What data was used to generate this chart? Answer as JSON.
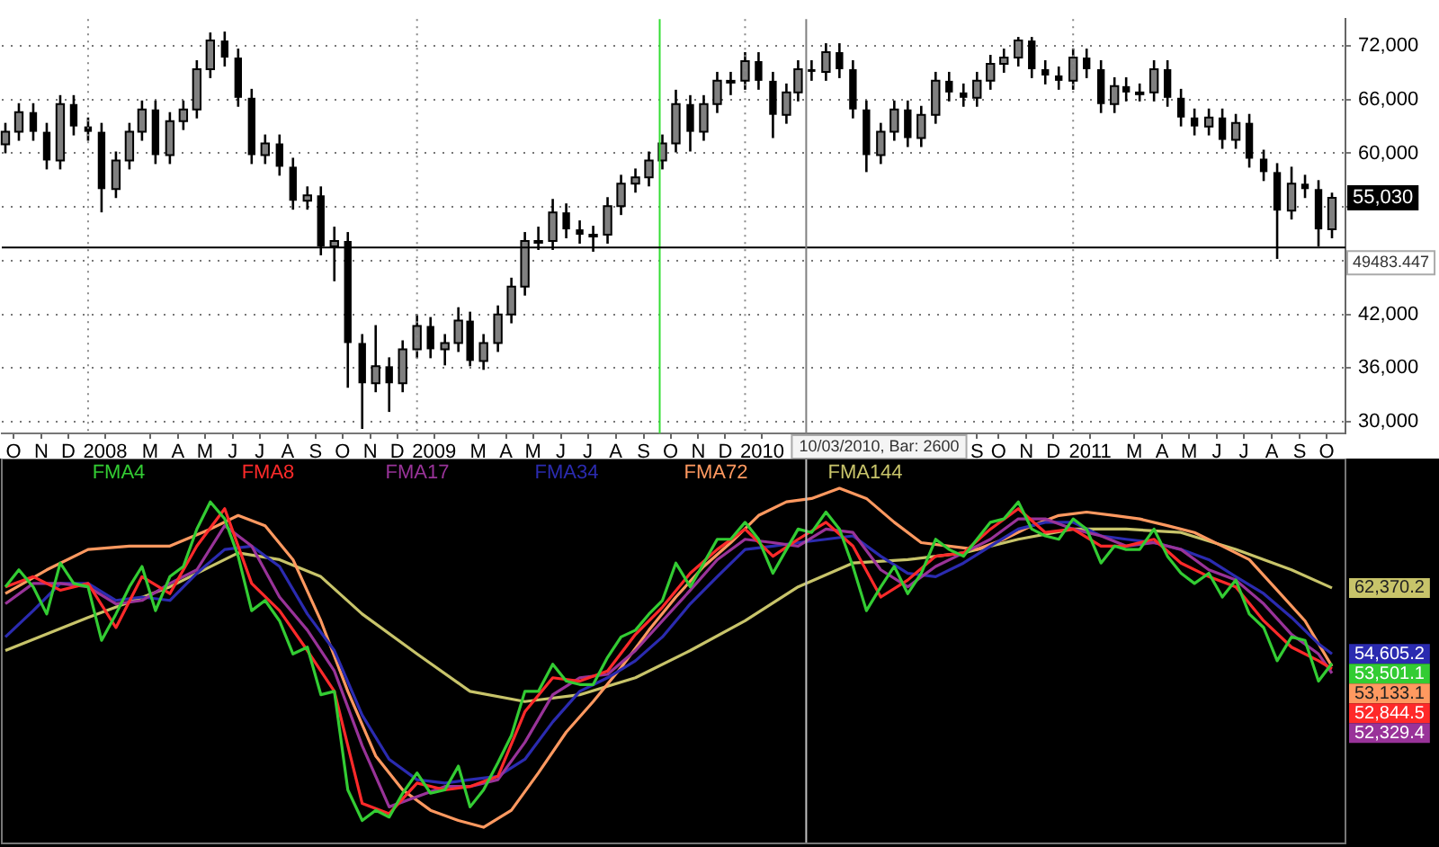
{
  "chart_data": [
    {
      "type": "candlestick",
      "x": [
        "2007-10-01",
        "2007-10-16",
        "2007-11-01",
        "2007-11-16",
        "2007-12-01",
        "2007-12-16",
        "2008-01-01",
        "2008-01-16",
        "2008-02-01",
        "2008-02-16",
        "2008-03-01",
        "2008-03-16",
        "2008-04-01",
        "2008-04-16",
        "2008-05-01",
        "2008-05-16",
        "2008-06-01",
        "2008-06-16",
        "2008-07-01",
        "2008-07-16",
        "2008-08-01",
        "2008-08-16",
        "2008-09-01",
        "2008-09-16",
        "2008-10-01",
        "2008-10-16",
        "2008-11-01",
        "2008-11-16",
        "2008-12-01",
        "2008-12-16",
        "2009-01-01",
        "2009-01-16",
        "2009-02-01",
        "2009-02-16",
        "2009-03-01",
        "2009-03-16",
        "2009-04-01",
        "2009-04-16",
        "2009-05-01",
        "2009-05-16",
        "2009-06-01",
        "2009-06-16",
        "2009-07-01",
        "2009-07-16",
        "2009-08-01",
        "2009-08-16",
        "2009-09-01",
        "2009-09-16",
        "2009-10-01",
        "2009-10-16",
        "2009-11-01",
        "2009-11-16",
        "2009-12-01",
        "2009-12-16",
        "2010-01-01",
        "2010-01-16",
        "2010-02-01",
        "2010-02-16",
        "2010-03-01",
        "2010-03-16",
        "2010-04-01",
        "2010-04-16",
        "2010-05-01",
        "2010-05-16",
        "2010-06-01",
        "2010-06-16",
        "2010-07-01",
        "2010-07-16",
        "2010-08-01",
        "2010-08-16",
        "2010-09-01",
        "2010-09-16",
        "2010-10-01",
        "2010-10-16",
        "2010-11-01",
        "2010-11-16",
        "2010-12-01",
        "2010-12-16",
        "2011-01-01",
        "2011-01-16",
        "2011-02-01",
        "2011-02-16",
        "2011-03-01",
        "2011-03-16",
        "2011-04-01",
        "2011-04-16",
        "2011-05-01",
        "2011-05-16",
        "2011-06-01",
        "2011-06-16",
        "2011-07-01",
        "2011-07-16",
        "2011-08-01",
        "2011-08-16",
        "2011-09-01",
        "2011-09-16",
        "2011-10-01",
        "2011-10-16"
      ],
      "ohlc": [
        [
          61000,
          63400,
          60000,
          62400
        ],
        [
          62400,
          65600,
          61400,
          64600
        ],
        [
          64600,
          65600,
          61400,
          62400
        ],
        [
          62400,
          63400,
          58200,
          59200
        ],
        [
          59200,
          66500,
          58200,
          65500
        ],
        [
          65500,
          66500,
          62000,
          63000
        ],
        [
          63000,
          64000,
          61400,
          62400
        ],
        [
          62400,
          63400,
          53400,
          56000
        ],
        [
          56000,
          60200,
          55000,
          59200
        ],
        [
          59200,
          63400,
          58200,
          62400
        ],
        [
          62400,
          65900,
          61400,
          64900
        ],
        [
          64900,
          65900,
          58800,
          59800
        ],
        [
          59800,
          64600,
          58800,
          63600
        ],
        [
          63600,
          65900,
          62600,
          64900
        ],
        [
          64900,
          70400,
          63900,
          69400
        ],
        [
          69400,
          73500,
          68400,
          72600
        ],
        [
          72600,
          73600,
          69700,
          70700
        ],
        [
          70700,
          71700,
          65200,
          66200
        ],
        [
          66200,
          67200,
          58800,
          59800
        ],
        [
          59800,
          62100,
          58800,
          61100
        ],
        [
          61100,
          62100,
          57500,
          58500
        ],
        [
          58500,
          59500,
          53700,
          54700
        ],
        [
          54700,
          56300,
          53700,
          55300
        ],
        [
          55300,
          56300,
          48600,
          49600
        ],
        [
          49600,
          51800,
          45700,
          50200
        ],
        [
          50200,
          51200,
          33800,
          38800
        ],
        [
          38800,
          39800,
          29200,
          34300
        ],
        [
          34300,
          40800,
          33300,
          36200
        ],
        [
          36200,
          37200,
          31100,
          34300
        ],
        [
          34300,
          39100,
          33300,
          38100
        ],
        [
          38100,
          42000,
          37100,
          40700
        ],
        [
          40700,
          41700,
          37100,
          38100
        ],
        [
          38100,
          39800,
          36300,
          38800
        ],
        [
          38800,
          42800,
          37800,
          41300
        ],
        [
          41300,
          42300,
          36200,
          36800
        ],
        [
          36800,
          39800,
          35800,
          38800
        ],
        [
          38800,
          43000,
          37800,
          42000
        ],
        [
          42000,
          46100,
          41000,
          45100
        ],
        [
          45100,
          51200,
          44100,
          50200
        ],
        [
          50200,
          51800,
          49200,
          50200
        ],
        [
          50200,
          54900,
          49200,
          53400
        ],
        [
          53400,
          54400,
          50500,
          51500
        ],
        [
          51500,
          52500,
          49900,
          50900
        ],
        [
          50900,
          51900,
          49000,
          50900
        ],
        [
          50900,
          55100,
          49900,
          54100
        ],
        [
          54100,
          57600,
          53100,
          56600
        ],
        [
          56600,
          58300,
          55600,
          57300
        ],
        [
          57300,
          60200,
          56300,
          59200
        ],
        [
          59200,
          62100,
          58200,
          61100
        ],
        [
          61100,
          67100,
          60100,
          65500
        ],
        [
          65500,
          66500,
          60200,
          62400
        ],
        [
          62400,
          66500,
          61400,
          65500
        ],
        [
          65500,
          69100,
          64500,
          68100
        ],
        [
          68100,
          69100,
          66500,
          68100
        ],
        [
          68100,
          71300,
          67100,
          70300
        ],
        [
          70300,
          71300,
          67100,
          68100
        ],
        [
          68100,
          69100,
          61700,
          64300
        ],
        [
          64300,
          67800,
          63300,
          66800
        ],
        [
          66800,
          70400,
          65800,
          69400
        ],
        [
          69400,
          70400,
          68100,
          69100
        ],
        [
          69100,
          72300,
          68100,
          71300
        ],
        [
          71300,
          72300,
          68400,
          69400
        ],
        [
          69400,
          70400,
          63900,
          64900
        ],
        [
          64900,
          65900,
          57900,
          59800
        ],
        [
          59800,
          63400,
          58800,
          62400
        ],
        [
          62400,
          65900,
          61400,
          64900
        ],
        [
          64900,
          65900,
          60700,
          61700
        ],
        [
          61700,
          65300,
          60700,
          64300
        ],
        [
          64300,
          69100,
          63300,
          68100
        ],
        [
          68100,
          69100,
          65800,
          66800
        ],
        [
          66800,
          67800,
          65200,
          66200
        ],
        [
          66200,
          69100,
          65200,
          68100
        ],
        [
          68100,
          71000,
          67100,
          70000
        ],
        [
          70000,
          71700,
          69000,
          70700
        ],
        [
          70700,
          73000,
          69700,
          72600
        ],
        [
          72600,
          73000,
          68400,
          69400
        ],
        [
          69400,
          70400,
          67700,
          68700
        ],
        [
          68700,
          69700,
          67100,
          68100
        ],
        [
          68100,
          71700,
          67100,
          70700
        ],
        [
          70700,
          71700,
          68400,
          69400
        ],
        [
          69400,
          70400,
          64500,
          65500
        ],
        [
          65500,
          68500,
          64500,
          67500
        ],
        [
          67500,
          68500,
          65800,
          66800
        ],
        [
          66800,
          67800,
          65800,
          66800
        ],
        [
          66800,
          70400,
          65800,
          69400
        ],
        [
          69400,
          70400,
          65200,
          66200
        ],
        [
          66200,
          67200,
          63000,
          64000
        ],
        [
          64000,
          65000,
          62000,
          63000
        ],
        [
          63000,
          65000,
          62000,
          64000
        ],
        [
          64000,
          65000,
          60500,
          61500
        ],
        [
          61500,
          64400,
          60500,
          63400
        ],
        [
          63400,
          64400,
          58400,
          59400
        ],
        [
          59400,
          60400,
          56900,
          57900
        ],
        [
          57900,
          58900,
          48200,
          53600
        ],
        [
          53600,
          58500,
          52600,
          56600
        ],
        [
          56600,
          57600,
          55000,
          56000
        ],
        [
          56000,
          57000,
          49600,
          51500
        ],
        [
          51500,
          55600,
          50500,
          55030
        ]
      ],
      "color": "#000000",
      "xlim": [
        "2007-09-27",
        "2011-10-31"
      ],
      "xticks": [
        {
          "value": "2007-10-10",
          "label": "O"
        },
        {
          "value": "2007-11-10",
          "label": "N"
        },
        {
          "value": "2007-12-10",
          "label": "D"
        },
        {
          "value": "2008-01-20",
          "label": "2008"
        },
        {
          "value": "2008-03-10",
          "label": "M"
        },
        {
          "value": "2008-04-10",
          "label": "A"
        },
        {
          "value": "2008-05-10",
          "label": "M"
        },
        {
          "value": "2008-06-10",
          "label": "J"
        },
        {
          "value": "2008-07-10",
          "label": "J"
        },
        {
          "value": "2008-08-10",
          "label": "A"
        },
        {
          "value": "2008-09-10",
          "label": "S"
        },
        {
          "value": "2008-10-10",
          "label": "O"
        },
        {
          "value": "2008-11-10",
          "label": "N"
        },
        {
          "value": "2008-12-10",
          "label": "D"
        },
        {
          "value": "2009-01-20",
          "label": "2009"
        },
        {
          "value": "2009-03-10",
          "label": "M"
        },
        {
          "value": "2009-04-10",
          "label": "A"
        },
        {
          "value": "2009-05-10",
          "label": "M"
        },
        {
          "value": "2009-06-10",
          "label": "J"
        },
        {
          "value": "2009-07-10",
          "label": "J"
        },
        {
          "value": "2009-08-10",
          "label": "A"
        },
        {
          "value": "2009-09-10",
          "label": "S"
        },
        {
          "value": "2009-10-10",
          "label": "O"
        },
        {
          "value": "2009-11-10",
          "label": "N"
        },
        {
          "value": "2009-12-10",
          "label": "D"
        },
        {
          "value": "2010-01-20",
          "label": "2010"
        },
        {
          "value": "2010-09-16",
          "label": "S"
        },
        {
          "value": "2010-10-10",
          "label": "O"
        },
        {
          "value": "2010-11-10",
          "label": "N"
        },
        {
          "value": "2010-12-10",
          "label": "D"
        },
        {
          "value": "2011-01-20",
          "label": "2011"
        },
        {
          "value": "2011-03-10",
          "label": "M"
        },
        {
          "value": "2011-04-10",
          "label": "A"
        },
        {
          "value": "2011-05-10",
          "label": "M"
        },
        {
          "value": "2011-06-10",
          "label": "J"
        },
        {
          "value": "2011-07-10",
          "label": "J"
        },
        {
          "value": "2011-08-10",
          "label": "A"
        },
        {
          "value": "2011-09-10",
          "label": "S"
        },
        {
          "value": "2011-10-10",
          "label": "O"
        }
      ],
      "ylim": [
        28700,
        75000
      ],
      "yticks": [
        {
          "value": 30000,
          "label": "30,000"
        },
        {
          "value": 36000,
          "label": "36,000"
        },
        {
          "value": 42000,
          "label": "42,000"
        },
        {
          "value": 48000,
          "label": null
        },
        {
          "value": 54000,
          "label": null
        },
        {
          "value": 60000,
          "label": "60,000"
        },
        {
          "value": 66000,
          "label": "66,000"
        },
        {
          "value": 72000,
          "label": "72,000"
        }
      ],
      "grid": "y",
      "ref_lines": [
        {
          "axis": "x",
          "value": "2008-01-01",
          "color": "#888888",
          "line_style": "dotted"
        },
        {
          "axis": "x",
          "value": "2009-01-01",
          "color": "#888888",
          "line_style": "dotted"
        },
        {
          "axis": "x",
          "value": "2010-01-01",
          "color": "#888888",
          "line_style": "dotted"
        },
        {
          "axis": "x",
          "value": "2011-01-01",
          "color": "#888888",
          "line_style": "dotted"
        },
        {
          "axis": "x",
          "value": "2009-09-28",
          "color": "#33dd33"
        },
        {
          "axis": "y",
          "value": 49483.447,
          "label": "49483.447",
          "color": "#000000"
        },
        {
          "axis": "x",
          "value": "2010-03-10",
          "color": "#808080"
        }
      ],
      "annotations": [
        {
          "text": "55,030",
          "y": 55030
        },
        "10/03/2010, Bar: 2600"
      ]
    },
    {
      "type": "line",
      "legend": "top",
      "tick_labels": false,
      "xlim": [
        "2007-09-27",
        "2011-10-31"
      ],
      "ylim": [
        32300,
        77600
      ],
      "x": [
        "2007-10-01",
        "2007-10-16",
        "2007-11-01",
        "2007-11-16",
        "2007-12-01",
        "2007-12-16",
        "2008-01-01",
        "2008-01-16",
        "2008-02-01",
        "2008-02-16",
        "2008-03-01",
        "2008-03-16",
        "2008-04-01",
        "2008-04-16",
        "2008-05-01",
        "2008-05-16",
        "2008-06-01",
        "2008-06-16",
        "2008-07-01",
        "2008-07-16",
        "2008-08-01",
        "2008-08-16",
        "2008-09-01",
        "2008-09-16",
        "2008-10-01",
        "2008-10-16",
        "2008-11-01",
        "2008-11-16",
        "2008-12-01",
        "2008-12-16",
        "2009-01-01",
        "2009-01-16",
        "2009-02-01",
        "2009-02-16",
        "2009-03-01",
        "2009-03-16",
        "2009-04-01",
        "2009-04-16",
        "2009-05-01",
        "2009-05-16",
        "2009-06-01",
        "2009-06-16",
        "2009-07-01",
        "2009-07-16",
        "2009-08-01",
        "2009-08-16",
        "2009-09-01",
        "2009-09-16",
        "2009-10-01",
        "2009-10-16",
        "2009-11-01",
        "2009-11-16",
        "2009-12-01",
        "2009-12-16",
        "2010-01-01",
        "2010-01-16",
        "2010-02-01",
        "2010-02-16",
        "2010-03-01",
        "2010-03-16",
        "2010-04-01",
        "2010-04-16",
        "2010-05-01",
        "2010-05-16",
        "2010-06-01",
        "2010-06-16",
        "2010-07-01",
        "2010-07-16",
        "2010-08-01",
        "2010-08-16",
        "2010-09-01",
        "2010-09-16",
        "2010-10-01",
        "2010-10-16",
        "2010-11-01",
        "2010-11-16",
        "2010-12-01",
        "2010-12-16",
        "2011-01-01",
        "2011-01-16",
        "2011-02-01",
        "2011-02-16",
        "2011-03-01",
        "2011-03-16",
        "2011-04-01",
        "2011-04-16",
        "2011-05-01",
        "2011-05-16",
        "2011-06-01",
        "2011-06-16",
        "2011-07-01",
        "2011-07-16",
        "2011-08-01",
        "2011-08-16",
        "2011-09-01",
        "2011-09-16",
        "2011-10-01",
        "2011-10-16"
      ],
      "ref_lines": [
        {
          "axis": "x",
          "value": "2010-03-10",
          "color": "#c0c0c0"
        }
      ],
      "series": [
        {
          "name": "FMA4",
          "color": "#33cc33",
          "values": [
            62500,
            64500,
            62500,
            59300,
            65300,
            62900,
            62500,
            56200,
            59300,
            62500,
            64900,
            59700,
            63700,
            64900,
            69300,
            72500,
            70500,
            66100,
            59700,
            60900,
            58500,
            54600,
            55400,
            49800,
            50200,
            38600,
            35000,
            36200,
            35400,
            38200,
            40600,
            38200,
            38600,
            41400,
            36600,
            38600,
            41800,
            45000,
            50200,
            50200,
            53400,
            51400,
            51000,
            51000,
            54200,
            56600,
            57400,
            59300,
            60900,
            65300,
            62500,
            65300,
            68100,
            68100,
            70100,
            68100,
            64100,
            66900,
            69300,
            68900,
            71300,
            69300,
            64900,
            59700,
            62500,
            64900,
            61700,
            64100,
            68100,
            66900,
            66100,
            68100,
            70100,
            70500,
            72500,
            69300,
            68500,
            68100,
            70500,
            69300,
            65300,
            67300,
            66900,
            66900,
            69300,
            66100,
            64100,
            62900,
            64100,
            61300,
            63300,
            59300,
            57700,
            53800,
            56600,
            56200,
            51400,
            53501.1
          ],
          "value_labels": [
            null,
            null,
            null,
            null,
            null,
            null,
            null,
            null,
            null,
            null,
            null,
            null,
            null,
            null,
            null,
            null,
            null,
            null,
            null,
            null,
            null,
            null,
            null,
            null,
            null,
            null,
            null,
            null,
            null,
            null,
            null,
            null,
            null,
            null,
            null,
            null,
            null,
            null,
            null,
            null,
            null,
            null,
            null,
            null,
            null,
            null,
            null,
            null,
            null,
            null,
            null,
            null,
            null,
            null,
            null,
            null,
            null,
            null,
            null,
            null,
            null,
            null,
            null,
            null,
            null,
            null,
            null,
            null,
            null,
            null,
            null,
            null,
            null,
            null,
            null,
            null,
            null,
            null,
            null,
            null,
            null,
            null,
            null,
            null,
            null,
            null,
            null,
            null,
            null,
            null,
            null,
            null,
            null,
            null,
            null,
            null,
            null,
            "53,501.1"
          ]
        },
        {
          "name": "FMA8",
          "color": "#ff2a2a",
          "x": [
            "2007-10-01",
            "2007-11-01",
            "2007-12-01",
            "2008-01-01",
            "2008-02-01",
            "2008-03-01",
            "2008-04-01",
            "2008-05-01",
            "2008-06-01",
            "2008-07-01",
            "2008-08-01",
            "2008-09-01",
            "2008-10-01",
            "2008-11-01",
            "2008-12-01",
            "2009-01-01",
            "2009-02-01",
            "2009-03-01",
            "2009-04-01",
            "2009-05-01",
            "2009-06-01",
            "2009-07-01",
            "2009-08-01",
            "2009-09-01",
            "2009-10-01",
            "2009-11-01",
            "2009-12-01",
            "2010-01-01",
            "2010-02-01",
            "2010-03-01",
            "2010-04-01",
            "2010-05-01",
            "2010-06-01",
            "2010-07-01",
            "2010-08-01",
            "2010-09-01",
            "2010-10-01",
            "2010-11-01",
            "2010-12-01",
            "2011-01-01",
            "2011-02-01",
            "2011-03-01",
            "2011-04-01",
            "2011-05-01",
            "2011-06-01",
            "2011-07-01",
            "2011-08-01",
            "2011-09-01",
            "2011-10-01",
            "2011-10-16"
          ],
          "values": [
            62500,
            63700,
            62100,
            62900,
            57700,
            63700,
            61700,
            67300,
            71700,
            62900,
            59700,
            55000,
            50200,
            37000,
            35800,
            39400,
            38600,
            39000,
            40200,
            47800,
            51800,
            51400,
            52600,
            56900,
            60100,
            64100,
            66900,
            69300,
            66100,
            68100,
            70100,
            67300,
            61300,
            63300,
            66100,
            66500,
            69300,
            71700,
            68900,
            69300,
            67300,
            67300,
            68100,
            65300,
            63700,
            62500,
            58500,
            55400,
            53800,
            52844.5
          ],
          "value_labels": [
            null,
            null,
            null,
            null,
            null,
            null,
            null,
            null,
            null,
            null,
            null,
            null,
            null,
            null,
            null,
            null,
            null,
            null,
            null,
            null,
            null,
            null,
            null,
            null,
            null,
            null,
            null,
            null,
            null,
            null,
            null,
            null,
            null,
            null,
            null,
            null,
            null,
            null,
            null,
            null,
            null,
            null,
            null,
            null,
            null,
            null,
            null,
            null,
            null,
            "52,844.5"
          ]
        },
        {
          "name": "FMA17",
          "color": "#993399",
          "x": [
            "2007-10-01",
            "2007-11-01",
            "2007-12-01",
            "2008-01-01",
            "2008-02-01",
            "2008-03-01",
            "2008-04-01",
            "2008-05-01",
            "2008-06-01",
            "2008-07-01",
            "2008-08-01",
            "2008-09-01",
            "2008-10-01",
            "2008-11-01",
            "2008-12-01",
            "2009-01-01",
            "2009-02-01",
            "2009-03-01",
            "2009-04-01",
            "2009-05-01",
            "2009-06-01",
            "2009-07-01",
            "2009-08-01",
            "2009-09-01",
            "2009-10-01",
            "2009-11-01",
            "2009-12-01",
            "2010-01-01",
            "2010-02-01",
            "2010-03-01",
            "2010-04-01",
            "2010-05-01",
            "2010-06-01",
            "2010-07-01",
            "2010-08-01",
            "2010-09-01",
            "2010-10-01",
            "2010-11-01",
            "2010-12-01",
            "2011-01-01",
            "2011-02-01",
            "2011-03-01",
            "2011-04-01",
            "2011-05-01",
            "2011-06-01",
            "2011-07-01",
            "2011-08-01",
            "2011-09-01",
            "2011-10-01",
            "2011-10-16"
          ],
          "values": [
            60500,
            62900,
            62900,
            62500,
            60500,
            60900,
            62900,
            64500,
            69700,
            67300,
            61300,
            57400,
            52600,
            43800,
            36600,
            37800,
            39000,
            39000,
            39800,
            44200,
            49800,
            51800,
            52200,
            55000,
            58500,
            62100,
            65700,
            68100,
            67700,
            67300,
            69300,
            68900,
            64500,
            62500,
            64900,
            66500,
            68100,
            70500,
            70500,
            69300,
            68500,
            67300,
            67700,
            66900,
            64500,
            63300,
            60500,
            56900,
            54600,
            52329.4
          ],
          "value_labels": [
            null,
            null,
            null,
            null,
            null,
            null,
            null,
            null,
            null,
            null,
            null,
            null,
            null,
            null,
            null,
            null,
            null,
            null,
            null,
            null,
            null,
            null,
            null,
            null,
            null,
            null,
            null,
            null,
            null,
            null,
            null,
            null,
            null,
            null,
            null,
            null,
            null,
            null,
            null,
            null,
            null,
            null,
            null,
            null,
            null,
            null,
            null,
            null,
            null,
            "52,329.4"
          ]
        },
        {
          "name": "FMA34",
          "color": "#2b2bb0",
          "x": [
            "2007-10-01",
            "2007-11-01",
            "2007-12-01",
            "2008-01-01",
            "2008-02-01",
            "2008-03-01",
            "2008-04-01",
            "2008-05-01",
            "2008-06-01",
            "2008-07-01",
            "2008-08-01",
            "2008-09-01",
            "2008-10-01",
            "2008-11-01",
            "2008-12-01",
            "2009-01-01",
            "2009-02-01",
            "2009-03-01",
            "2009-04-01",
            "2009-05-01",
            "2009-06-01",
            "2009-07-01",
            "2009-08-01",
            "2009-09-01",
            "2009-10-01",
            "2009-11-01",
            "2009-12-01",
            "2010-01-01",
            "2010-02-01",
            "2010-03-01",
            "2010-04-01",
            "2010-05-01",
            "2010-06-01",
            "2010-07-01",
            "2010-08-01",
            "2010-09-01",
            "2010-10-01",
            "2010-11-01",
            "2010-12-01",
            "2011-01-01",
            "2011-02-01",
            "2011-03-01",
            "2011-04-01",
            "2011-05-01",
            "2011-06-01",
            "2011-07-01",
            "2011-08-01",
            "2011-09-01",
            "2011-10-01",
            "2011-10-16"
          ],
          "values": [
            56600,
            59700,
            62900,
            62900,
            60900,
            61300,
            60900,
            64100,
            66900,
            67300,
            64900,
            59300,
            55000,
            47400,
            42200,
            39800,
            39400,
            39800,
            40200,
            42200,
            46600,
            50200,
            51800,
            53800,
            56600,
            60500,
            63700,
            66900,
            67300,
            67700,
            68100,
            68500,
            66100,
            64100,
            63700,
            65300,
            67300,
            69300,
            70100,
            70100,
            68500,
            68100,
            67700,
            66900,
            65700,
            63700,
            61700,
            58900,
            55800,
            54605.2
          ],
          "value_labels": [
            null,
            null,
            null,
            null,
            null,
            null,
            null,
            null,
            null,
            null,
            null,
            null,
            null,
            null,
            null,
            null,
            null,
            null,
            null,
            null,
            null,
            null,
            null,
            null,
            null,
            null,
            null,
            null,
            null,
            null,
            null,
            null,
            null,
            null,
            null,
            null,
            null,
            null,
            null,
            null,
            null,
            null,
            null,
            null,
            null,
            null,
            null,
            null,
            null,
            "54,605.2"
          ]
        },
        {
          "name": "FMA72",
          "color": "#ff9960",
          "x": [
            "2007-10-01",
            "2007-11-16",
            "2008-01-01",
            "2008-02-16",
            "2008-04-01",
            "2008-05-16",
            "2008-06-16",
            "2008-07-16",
            "2008-08-16",
            "2008-09-16",
            "2008-10-16",
            "2008-11-16",
            "2008-12-16",
            "2009-01-16",
            "2009-02-16",
            "2009-03-16",
            "2009-04-16",
            "2009-05-16",
            "2009-06-16",
            "2009-07-16",
            "2009-08-16",
            "2009-09-16",
            "2009-10-16",
            "2009-11-16",
            "2009-12-16",
            "2010-01-16",
            "2010-02-16",
            "2010-03-16",
            "2010-04-16",
            "2010-05-16",
            "2010-06-16",
            "2010-07-16",
            "2010-08-16",
            "2010-09-16",
            "2010-10-16",
            "2010-11-16",
            "2010-12-16",
            "2011-01-16",
            "2011-02-16",
            "2011-03-16",
            "2011-04-16",
            "2011-05-16",
            "2011-06-16",
            "2011-07-16",
            "2011-08-16",
            "2011-09-16",
            "2011-10-16"
          ],
          "values": [
            61700,
            64500,
            66900,
            67300,
            67300,
            69300,
            70900,
            69700,
            65700,
            58500,
            50200,
            42600,
            38600,
            36200,
            35000,
            34200,
            36200,
            40600,
            45400,
            49000,
            53000,
            57400,
            61300,
            64900,
            67700,
            70900,
            72500,
            72900,
            74100,
            72900,
            70100,
            67700,
            67300,
            66900,
            68100,
            69700,
            70900,
            71300,
            70900,
            70500,
            69700,
            68900,
            67300,
            65700,
            62100,
            58500,
            53133.1
          ],
          "value_labels": [
            null,
            null,
            null,
            null,
            null,
            null,
            null,
            null,
            null,
            null,
            null,
            null,
            null,
            null,
            null,
            null,
            null,
            null,
            null,
            null,
            null,
            null,
            null,
            null,
            null,
            null,
            null,
            null,
            null,
            null,
            null,
            null,
            null,
            null,
            null,
            null,
            null,
            null,
            null,
            null,
            null,
            null,
            null,
            null,
            null,
            null,
            "53,133.1"
          ]
        },
        {
          "name": "FMA144",
          "color": "#c8c46a",
          "x": [
            "2007-10-01",
            "2008-01-01",
            "2008-04-01",
            "2008-06-16",
            "2008-08-01",
            "2008-09-16",
            "2008-11-01",
            "2009-01-01",
            "2009-03-01",
            "2009-05-01",
            "2009-07-01",
            "2009-09-01",
            "2009-11-01",
            "2010-01-01",
            "2010-03-01",
            "2010-05-01",
            "2010-07-01",
            "2010-09-01",
            "2010-11-01",
            "2011-01-01",
            "2011-03-01",
            "2011-05-01",
            "2011-07-01",
            "2011-09-01",
            "2011-10-16"
          ],
          "values": [
            55000,
            58900,
            62500,
            66500,
            65700,
            63700,
            59300,
            54600,
            50200,
            49000,
            49800,
            51800,
            55000,
            58500,
            62500,
            65300,
            65700,
            66500,
            68100,
            69300,
            69300,
            68900,
            66900,
            64500,
            62370.2
          ],
          "value_labels": [
            null,
            null,
            null,
            null,
            null,
            null,
            null,
            null,
            null,
            null,
            null,
            null,
            null,
            null,
            null,
            null,
            null,
            null,
            null,
            null,
            null,
            null,
            null,
            null,
            "62,370.2"
          ]
        }
      ]
    }
  ]
}
